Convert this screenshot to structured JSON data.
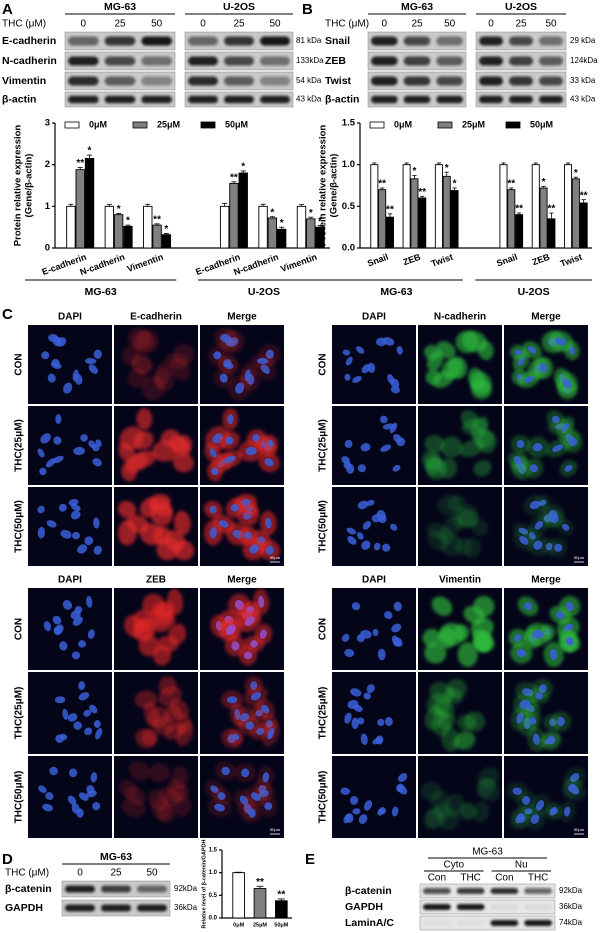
{
  "panel_labels": [
    "A",
    "B",
    "C",
    "D",
    "E"
  ],
  "blot_A": {
    "cell_lines": [
      "MG-63",
      "U-2OS"
    ],
    "dose_label": "THC  (μM)",
    "doses": [
      0,
      25,
      50
    ],
    "rows": [
      {
        "name": "E-cadherin",
        "kda": "81 kDa"
      },
      {
        "name": "N-cadherin",
        "kda": "133kDa"
      },
      {
        "name": "Vimentin",
        "kda": "54 kDa"
      },
      {
        "name": "β-actin",
        "kda": "43 kDa"
      }
    ]
  },
  "blot_B": {
    "cell_lines": [
      "MG-63",
      "U-2OS"
    ],
    "dose_label": "THC  (μM)",
    "doses": [
      0,
      25,
      50
    ],
    "rows": [
      {
        "name": "Snail",
        "kda": "29 kDa"
      },
      {
        "name": "ZEB",
        "kda": "124kDa"
      },
      {
        "name": "Twist",
        "kda": "33 kDa"
      },
      {
        "name": "β-actin",
        "kda": "43 kDa"
      }
    ]
  },
  "microscopy": [
    {
      "columns": [
        "DAPI",
        "E-cadherin",
        "Merge"
      ],
      "rows": [
        "CON",
        "THC(25μM)",
        "THC(50μM)"
      ],
      "scale_bar": "50μm",
      "color": "#e02828"
    },
    {
      "columns": [
        "DAPI",
        "N-cadherin",
        "Merge"
      ],
      "rows": [
        "CON",
        "THC(25μM)",
        "THC(50μM)"
      ],
      "scale_bar": "50μm",
      "color": "#2fbf3a"
    },
    {
      "columns": [
        "DAPI",
        "ZEB",
        "Merge"
      ],
      "rows": [
        "CON",
        "THC(25μM)",
        "THC(50μM)"
      ],
      "scale_bar": "50μm",
      "color": "#e02828"
    },
    {
      "columns": [
        "DAPI",
        "Vimentin",
        "Merge"
      ],
      "rows": [
        "CON",
        "THC(25μM)",
        "THC(50μM)"
      ],
      "scale_bar": "50μm",
      "color": "#2fbf3a"
    }
  ],
  "blot_D": {
    "cell_line": "MG-63",
    "dose_label": "THC  (μM)",
    "doses": [
      0,
      25,
      50
    ],
    "rows": [
      {
        "name": "β-catenin",
        "kda": "92kDa"
      },
      {
        "name": "GAPDH",
        "kda": "36kDa"
      }
    ]
  },
  "blot_E": {
    "cell_line": "MG-63",
    "fractions": [
      "Cyto",
      "Nu"
    ],
    "lanes": [
      "Con",
      "THC",
      "Con",
      "THC"
    ],
    "rows": [
      {
        "name": "β-catenin",
        "kda": "92kDa"
      },
      {
        "name": "GAPDH",
        "kda": "36kDa"
      },
      {
        "name": "LaminA/C",
        "kda": "74kDa"
      }
    ]
  },
  "chart_data": [
    {
      "type": "bar",
      "ylabel": [
        "Protein relative expression",
        "(Gene/β-actin)"
      ],
      "categories": [
        "E-cadherin",
        "N-cadherin",
        "Vimentin",
        "E-cadherin",
        "N-cadherin",
        "Vimentin"
      ],
      "groups": [
        "MG-63",
        "U-2OS"
      ],
      "ylim": [
        0,
        3
      ],
      "yticks": [
        0,
        1,
        2,
        3
      ],
      "series": [
        {
          "name": "0μM",
          "color": "#ffffff",
          "values": [
            1,
            1,
            1,
            1,
            1,
            1
          ],
          "errors": [
            0.05,
            0.04,
            0.05,
            0.07,
            0.05,
            0.04
          ]
        },
        {
          "name": "25μM",
          "color": "#808080",
          "values": [
            1.88,
            0.8,
            0.55,
            1.55,
            0.72,
            0.7
          ],
          "errors": [
            0.05,
            0.03,
            0.03,
            0.04,
            0.03,
            0.04
          ],
          "stars": [
            "**",
            "*",
            "**",
            "**",
            "*",
            "*"
          ]
        },
        {
          "name": "50μM",
          "color": "#000000",
          "values": [
            2.15,
            0.52,
            0.32,
            1.8,
            0.45,
            0.5
          ],
          "errors": [
            0.08,
            0.03,
            0.03,
            0.05,
            0.05,
            0.04
          ],
          "stars": [
            "*",
            "*",
            "*",
            "*",
            "*",
            "*"
          ]
        }
      ]
    },
    {
      "type": "bar",
      "ylabel": [
        "Protein relative expression",
        "(Gene/β-actin)"
      ],
      "categories": [
        "Snail",
        "ZEB",
        "Twist",
        "Snail",
        "ZEB",
        "Twist"
      ],
      "groups": [
        "MG-63",
        "U-2OS"
      ],
      "ylim": [
        0,
        1.5
      ],
      "yticks": [
        {
          "value": 0,
          "label": "0.0"
        },
        {
          "value": 0.5,
          "label": "0.5"
        },
        {
          "value": 1,
          "label": "1.0"
        },
        {
          "value": 1.5,
          "label": "1.5"
        }
      ],
      "series": [
        {
          "name": "0μM",
          "color": "#ffffff",
          "values": [
            1,
            1,
            1,
            1,
            1,
            1
          ],
          "errors": [
            0.02,
            0.02,
            0.02,
            0.02,
            0.02,
            0.02
          ]
        },
        {
          "name": "25μM",
          "color": "#808080",
          "values": [
            0.7,
            0.83,
            0.86,
            0.7,
            0.72,
            0.83
          ],
          "errors": [
            0.02,
            0.04,
            0.05,
            0.02,
            0.02,
            0.02
          ],
          "stars": [
            "**",
            "*",
            "*",
            "**",
            "*",
            "*"
          ]
        },
        {
          "name": "50μM",
          "color": "#000000",
          "values": [
            0.37,
            0.6,
            0.69,
            0.4,
            0.35,
            0.54
          ],
          "errors": [
            0.04,
            0.02,
            0.03,
            0.02,
            0.07,
            0.04
          ],
          "stars": [
            "**",
            "**",
            "*",
            "**",
            "**",
            "**"
          ]
        }
      ]
    },
    {
      "type": "bar",
      "ylabel": [
        "Relative level of β-catenin/GAPDH"
      ],
      "categories": [
        "0μM",
        "25μM",
        "50μM"
      ],
      "values": [
        1,
        0.65,
        0.38
      ],
      "errors": [
        0.01,
        0.05,
        0.04
      ],
      "colors": [
        "#ffffff",
        "#808080",
        "#000000"
      ],
      "stars": [
        null,
        "**",
        "**"
      ],
      "ylim": [
        0,
        1.5
      ],
      "yticks": [
        {
          "value": 0,
          "label": "0.0"
        },
        {
          "value": 0.5,
          "label": "0.5"
        },
        {
          "value": 1,
          "label": "1.0"
        },
        {
          "value": 1.5,
          "label": "1.5"
        }
      ]
    }
  ]
}
